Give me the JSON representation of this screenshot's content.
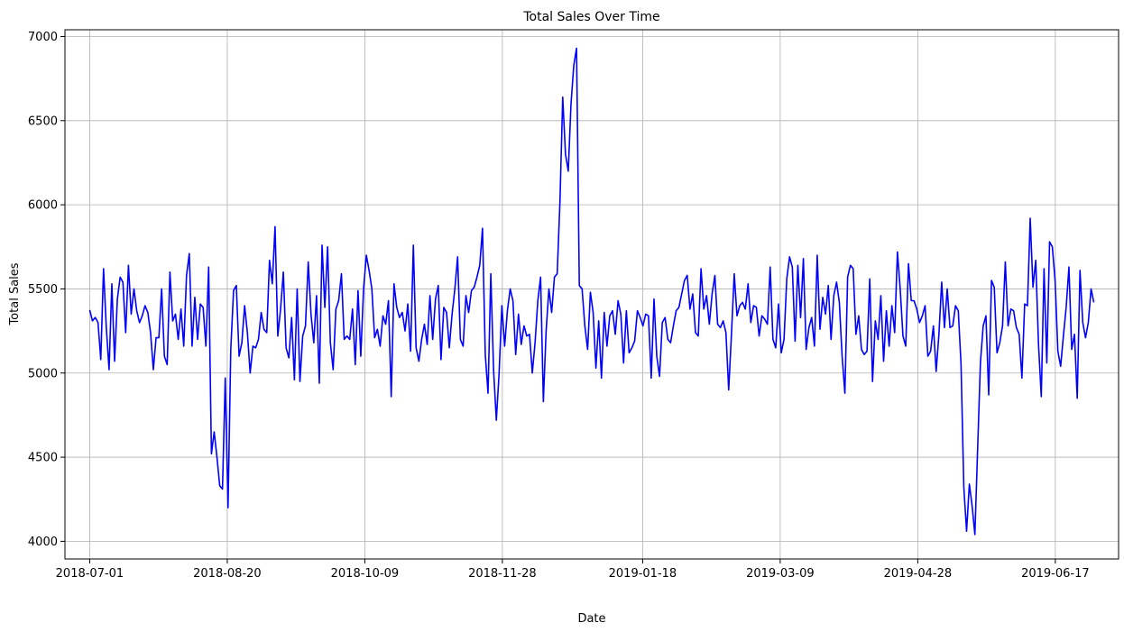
{
  "chart_data": {
    "type": "line",
    "title": "Total Sales Over Time",
    "xlabel": "Date",
    "ylabel": "Total Sales",
    "x_start": "2018-07-01",
    "x_end": "2019-07-01",
    "xlim": [
      "2018-06-22",
      "2019-07-10"
    ],
    "ylim": [
      3895,
      7040
    ],
    "x_ticks": [
      "2018-07-01",
      "2018-08-20",
      "2018-10-09",
      "2018-11-28",
      "2019-01-18",
      "2019-03-09",
      "2019-04-28",
      "2019-06-17"
    ],
    "y_ticks": [
      4000,
      4500,
      5000,
      5500,
      6000,
      6500,
      7000
    ],
    "grid": true,
    "line_color": "#0000ff",
    "series": [
      {
        "values": [
          5375,
          5310,
          5330,
          5300,
          5080,
          5620,
          5270,
          5020,
          5530,
          5070,
          5440,
          5570,
          5540,
          5240,
          5640,
          5350,
          5500,
          5370,
          5300,
          5340,
          5400,
          5360,
          5240,
          5020,
          5210,
          5210,
          5500,
          5100,
          5050,
          5600,
          5310,
          5350,
          5200,
          5380,
          5160,
          5580,
          5710,
          5160,
          5450,
          5200,
          5410,
          5390,
          5160,
          5630,
          4520,
          4650,
          4500,
          4330,
          4310,
          4970,
          4200,
          5140,
          5490,
          5520,
          5100,
          5180,
          5400,
          5240,
          5000,
          5160,
          5150,
          5200,
          5360,
          5260,
          5240,
          5670,
          5530,
          5870,
          5220,
          5380,
          5600,
          5150,
          5090,
          5330,
          4960,
          5500,
          4950,
          5220,
          5280,
          5660,
          5350,
          5180,
          5460,
          4940,
          5760,
          5390,
          5750,
          5180,
          5020,
          5380,
          5430,
          5590,
          5200,
          5220,
          5200,
          5380,
          5050,
          5490,
          5100,
          5500,
          5700,
          5610,
          5500,
          5210,
          5260,
          5160,
          5340,
          5290,
          5430,
          4860,
          5530,
          5390,
          5330,
          5360,
          5250,
          5410,
          5130,
          5760,
          5150,
          5070,
          5200,
          5290,
          5170,
          5460,
          5200,
          5440,
          5520,
          5080,
          5390,
          5360,
          5150,
          5350,
          5500,
          5690,
          5200,
          5160,
          5460,
          5360,
          5490,
          5510,
          5570,
          5640,
          5860,
          5110,
          4880,
          5590,
          5020,
          4720,
          5000,
          5400,
          5160,
          5370,
          5500,
          5430,
          5110,
          5350,
          5170,
          5280,
          5220,
          5230,
          5000,
          5180,
          5430,
          5570,
          4830,
          5250,
          5500,
          5360,
          5570,
          5590,
          6020,
          6640,
          6300,
          6200,
          6600,
          6830,
          6930,
          5520,
          5500,
          5280,
          5140,
          5480,
          5360,
          5030,
          5310,
          4970,
          5360,
          5160,
          5340,
          5370,
          5230,
          5430,
          5350,
          5060,
          5370,
          5120,
          5150,
          5190,
          5370,
          5330,
          5280,
          5350,
          5340,
          4970,
          5440,
          5100,
          4980,
          5300,
          5330,
          5200,
          5180,
          5280,
          5370,
          5390,
          5470,
          5550,
          5580,
          5380,
          5470,
          5240,
          5220,
          5620,
          5380,
          5460,
          5290,
          5470,
          5580,
          5290,
          5270,
          5310,
          5240,
          4900,
          5230,
          5590,
          5340,
          5400,
          5420,
          5380,
          5530,
          5300,
          5400,
          5390,
          5220,
          5340,
          5320,
          5290,
          5630,
          5200,
          5150,
          5410,
          5120,
          5200,
          5560,
          5690,
          5630,
          5190,
          5640,
          5330,
          5680,
          5140,
          5270,
          5330,
          5160,
          5700,
          5260,
          5450,
          5350,
          5520,
          5200,
          5460,
          5540,
          5420,
          5100,
          4880,
          5570,
          5640,
          5620,
          5230,
          5340,
          5140,
          5110,
          5130,
          5560,
          4950,
          5310,
          5200,
          5460,
          5070,
          5370,
          5160,
          5400,
          5240,
          5720,
          5500,
          5220,
          5160,
          5650,
          5430,
          5430,
          5380,
          5300,
          5340,
          5400,
          5100,
          5130,
          5280,
          5010,
          5230,
          5540,
          5270,
          5500,
          5270,
          5280,
          5400,
          5370,
          5050,
          4320,
          4060,
          4340,
          4210,
          4040,
          4550,
          5060,
          5280,
          5340,
          4870,
          5550,
          5510,
          5120,
          5180,
          5280,
          5660,
          5280,
          5380,
          5370,
          5270,
          5230,
          4970,
          5410,
          5400,
          5920,
          5510,
          5670,
          5170,
          4860,
          5620,
          5060,
          5780,
          5750,
          5550,
          5130,
          5040,
          5220,
          5390,
          5630,
          5140,
          5230,
          4850,
          5610,
          5300,
          5210,
          5300,
          5500,
          5420
        ]
      }
    ]
  }
}
